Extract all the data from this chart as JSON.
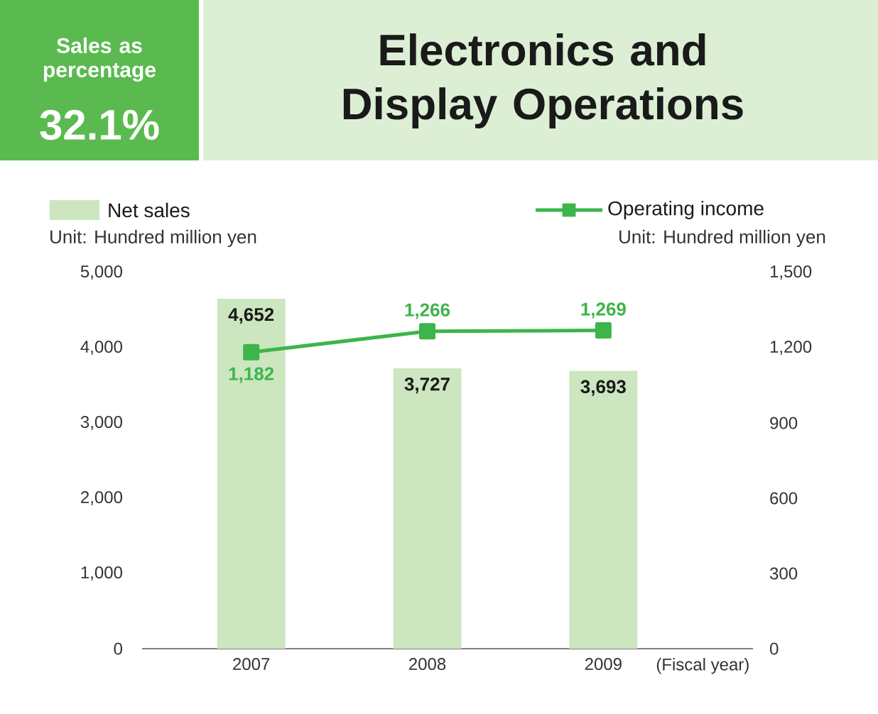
{
  "chart_data": {
    "type": "bar",
    "title": "Electronics and Display Operations",
    "annotations": [
      "Sales as percentage",
      "32.1%"
    ],
    "categories": [
      "2007",
      "2008",
      "2009"
    ],
    "xlabel": "(Fiscal year)",
    "ylabel": "Unit: Hundred million yen",
    "y2label": "Unit: Hundred million yen",
    "series": [
      {
        "name": "Net sales",
        "color": "#cce6c0",
        "values": [
          4652,
          3727,
          3693
        ],
        "value_labels": [
          "4,652",
          "3,727",
          "3,693"
        ]
      },
      {
        "name": "Operating income",
        "type": "line",
        "axis": "y2",
        "color": "#3db54a",
        "values": [
          1182,
          1266,
          1269
        ],
        "value_labels": [
          "1,182",
          "1,266",
          "1,269"
        ],
        "marker": "square",
        "line_style": "solid"
      }
    ],
    "ylim": [
      0,
      5000
    ],
    "yticks": [
      0,
      {
        "value": 1000,
        "label": "1,000"
      },
      {
        "value": 2000,
        "label": "2,000"
      },
      {
        "value": 3000,
        "label": "3,000"
      },
      {
        "value": 4000,
        "label": "4,000"
      },
      {
        "value": 5000,
        "label": "5,000"
      }
    ],
    "y2lim": [
      0,
      1500
    ],
    "y2ticks": [
      0,
      300,
      600,
      900,
      {
        "value": 1200,
        "label": "1,200"
      },
      {
        "value": 1500,
        "label": "1,500"
      }
    ],
    "grid": false,
    "legend": "top"
  }
}
